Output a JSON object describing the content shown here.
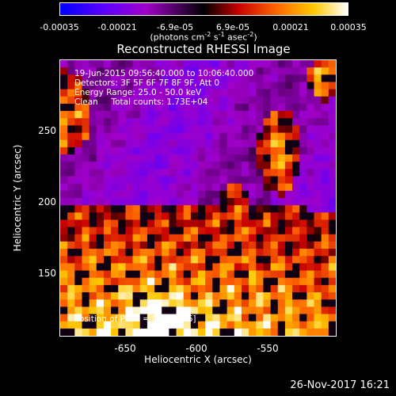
{
  "colors": {
    "background": "#000000",
    "text": "#ffffff"
  },
  "colorbar": {
    "ticks": [
      "-0.00035",
      "-0.00021",
      "-6.9e-05",
      "6.9e-05",
      "0.00021",
      "0.00035"
    ],
    "tick_values": [
      -0.00035,
      -0.00021,
      -6.9e-05,
      6.9e-05,
      0.00021,
      0.00035
    ],
    "range": [
      -0.00035,
      0.00035
    ],
    "units_text": "(photons cm",
    "units_exp1": "-2",
    "units_mid": " s",
    "units_exp2": "-1",
    "units_mid2": " asec",
    "units_exp3": "-2",
    "units_end": ")",
    "colors": [
      "#0000ff",
      "#5a00ff",
      "#a000c8",
      "#000000",
      "#c80000",
      "#ff6400",
      "#ffc800",
      "#ffffff"
    ]
  },
  "chart_data": {
    "type": "heatmap",
    "title": "Reconstructed RHESSI Image",
    "xlabel": "Heliocentric X (arcsec)",
    "ylabel": "Heliocentric Y (arcsec)",
    "xlim": [
      -695,
      -485
    ],
    "ylim": [
      105,
      315
    ],
    "x_ticks": [
      -650,
      -600,
      -550
    ],
    "y_ticks": [
      150,
      200,
      250
    ],
    "annotations": [
      "19-Jun-2015 09:56:40.000 to 10:06:40.000",
      "Detectors: 3F 5F 6F 7F 8F 9F, Att 0",
      "Energy Range: 25.0 - 50.0 keV",
      "Clean     Total counts: 1.73E+04"
    ],
    "peak_label": "Position of Peak = [-625,126]",
    "peak": [
      -625,
      126
    ],
    "value_range": [
      -0.00035,
      0.00035
    ],
    "grid": false
  },
  "footer": {
    "timestamp": "26-Nov-2017 16:21"
  }
}
